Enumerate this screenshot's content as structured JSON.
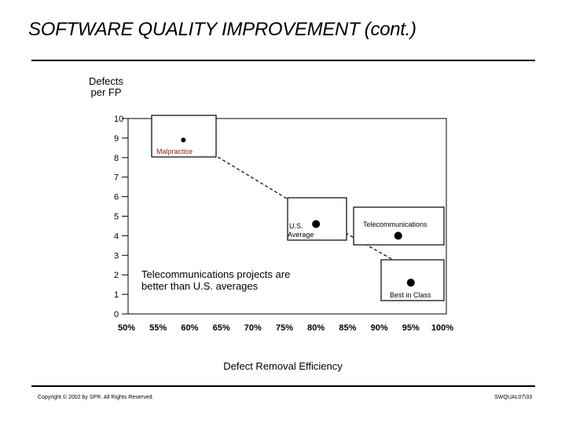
{
  "slide": {
    "title": "SOFTWARE QUALITY IMPROVEMENT (cont.)",
    "copyright": "Copyright © 2002 by SPR. All Rights Reserved.",
    "code": "SWQUAL07\\33"
  },
  "chart_data": {
    "type": "scatter",
    "title": "",
    "xlabel": "Defect Removal Efficiency",
    "ylabel": "Defects per FP",
    "ylabel_lines": [
      "Defects",
      "per FP"
    ],
    "xlim": [
      50,
      100
    ],
    "ylim": [
      0,
      10
    ],
    "x_ticks": [
      50,
      55,
      60,
      65,
      70,
      75,
      80,
      85,
      90,
      95,
      100
    ],
    "x_tick_labels": [
      "50%",
      "55%",
      "60%",
      "65%",
      "70%",
      "75%",
      "80%",
      "85%",
      "90%",
      "95%",
      "100%"
    ],
    "y_ticks": [
      0,
      1,
      2,
      3,
      4,
      5,
      6,
      7,
      8,
      9,
      10
    ],
    "y_tick_labels": [
      "0",
      "1",
      "2",
      "3",
      "4",
      "5",
      "6",
      "7",
      "8",
      "9",
      "10"
    ],
    "grid": false,
    "points": [
      {
        "x": 59,
        "y": 8.9,
        "label": "Malpractice",
        "label_color": "#8b1a1a",
        "size": "small"
      },
      {
        "x": 80,
        "y": 4.6,
        "label": "U.S. Average",
        "label_lines": [
          "U.S.",
          "Average"
        ],
        "size": "large"
      },
      {
        "x": 93,
        "y": 4.0,
        "label": "Telecommunications",
        "size": "large"
      },
      {
        "x": 95,
        "y": 1.6,
        "label": "Best in Class",
        "size": "large"
      }
    ],
    "trend_line": [
      [
        60,
        8.9
      ],
      [
        80,
        5.0
      ],
      [
        92,
        2.8
      ],
      [
        95,
        1.6
      ]
    ],
    "annotation_lines": [
      "Telecommunications projects are",
      "better than U.S. averages"
    ]
  }
}
